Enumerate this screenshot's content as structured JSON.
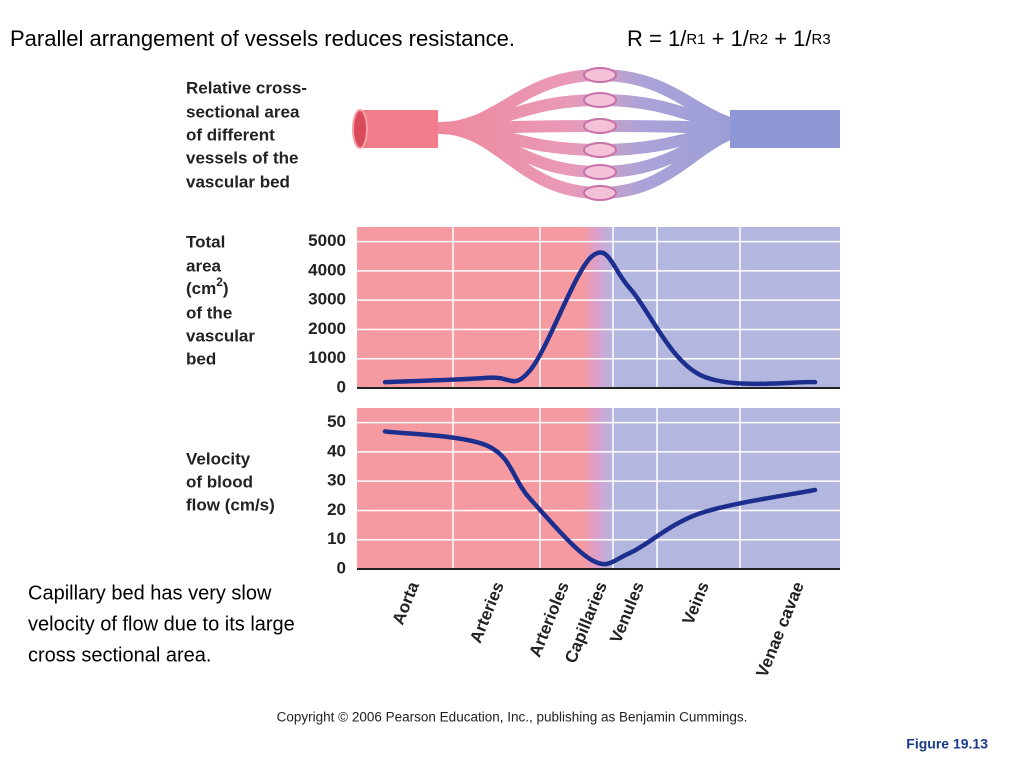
{
  "title": "Parallel arrangement of vessels reduces resistance.",
  "formula": [
    "R =  1/",
    "R1",
    " + 1/",
    "R2",
    " + 1/",
    "R3"
  ],
  "diagram_label": [
    "Relative cross-",
    "sectional area",
    "of different",
    "vessels of the",
    "vascular bed"
  ],
  "note": [
    "Capillary bed has very slow",
    "velocity of flow due to its large",
    "cross sectional area."
  ],
  "copyright": "Copyright © 2006 Pearson Education, Inc., publishing as Benjamin Cummings.",
  "figure": "Figure 19.13",
  "chart_data": [
    {
      "type": "line",
      "ylabel": [
        "Total",
        "area",
        "(cm",
        "2",
        ")",
        "of the",
        "vascular",
        "bed"
      ],
      "values": [
        200,
        350,
        600,
        4500,
        3400,
        450,
        200
      ],
      "color": "#1c2f8e",
      "ylim": [
        0,
        5500
      ],
      "yticks": [
        0,
        1000,
        2000,
        3000,
        4000,
        5000
      ],
      "grid": true
    },
    {
      "type": "line",
      "ylabel": [
        "Velocity",
        "of blood",
        "flow (cm/s)"
      ],
      "categories": [
        "Aorta",
        "Arteries",
        "Arterioles",
        "Capillaries",
        "Venules",
        "Veins",
        "Venae cavae"
      ],
      "values": [
        47,
        42,
        24,
        3,
        5.5,
        19,
        27
      ],
      "color": "#1c2f8e",
      "ylim": [
        0,
        55
      ],
      "yticks": [
        0,
        10,
        20,
        30,
        40,
        50
      ],
      "grid": true
    }
  ]
}
